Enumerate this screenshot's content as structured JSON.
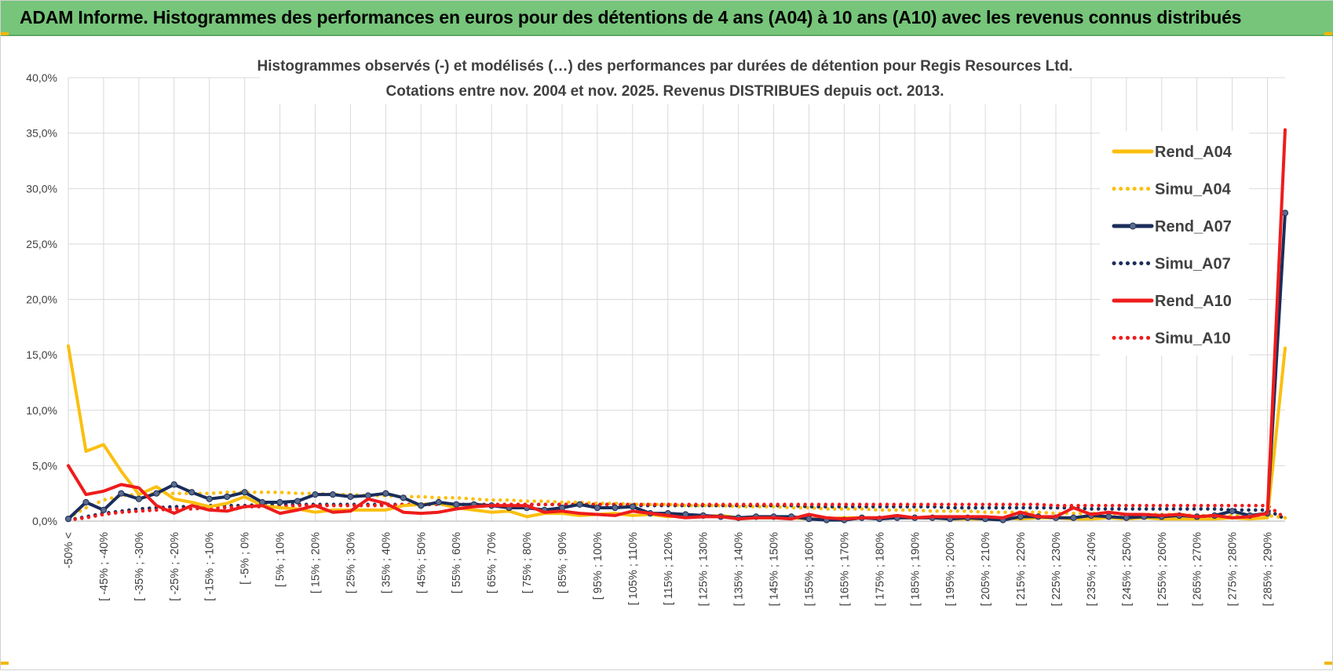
{
  "header": {
    "title": "ADAM Informe. Histogrammes des performances en euros pour des détentions de 4 ans (A04) à 10 ans (A10) avec les revenus connus distribués"
  },
  "colors": {
    "banner": "#76c57a",
    "rend_a04": "#fbbf0f",
    "rend_a07": "#1a2d5a",
    "rend_a10": "#ee1c1c",
    "grid": "#d9d9d9"
  },
  "chart_data": {
    "type": "line",
    "title_line1": "Histogrammes observés (-) et modélisés (…)  des performances par durées de détention pour Regis Resources Ltd.",
    "title_line2": "Cotations entre nov. 2004 et nov. 2025. Revenus DISTRIBUES depuis oct. 2013.",
    "xlabel": "",
    "ylabel": "",
    "ylim": [
      0,
      40
    ],
    "yticks": [
      "0,0%",
      "5,0%",
      "10,0%",
      "15,0%",
      "20,0%",
      "25,0%",
      "30,0%",
      "35,0%",
      "40,0%"
    ],
    "grid": true,
    "legend_position": "right",
    "x_labels": [
      {
        "i": 0,
        "label": "-50% <"
      },
      {
        "i": 2,
        "label": "[ -45% ; -40%"
      },
      {
        "i": 4,
        "label": "[ -35% ; -30%"
      },
      {
        "i": 6,
        "label": "[ -25% ; -20%"
      },
      {
        "i": 8,
        "label": "[ -15% ; -10%"
      },
      {
        "i": 10,
        "label": "[ -5% ; 0%"
      },
      {
        "i": 12,
        "label": "[ 5% ; 10%"
      },
      {
        "i": 14,
        "label": "[ 15% ; 20%"
      },
      {
        "i": 16,
        "label": "[ 25% ; 30%"
      },
      {
        "i": 18,
        "label": "[ 35% ; 40%"
      },
      {
        "i": 20,
        "label": "[ 45% ; 50%"
      },
      {
        "i": 22,
        "label": "[ 55% ; 60%"
      },
      {
        "i": 24,
        "label": "[ 65% ; 70%"
      },
      {
        "i": 26,
        "label": "[ 75% ; 80%"
      },
      {
        "i": 28,
        "label": "[ 85% ; 90%"
      },
      {
        "i": 30,
        "label": "[ 95% ; 100%"
      },
      {
        "i": 32,
        "label": "[ 105% ; 110%"
      },
      {
        "i": 34,
        "label": "[ 115% ; 120%"
      },
      {
        "i": 36,
        "label": "[ 125% ; 130%"
      },
      {
        "i": 38,
        "label": "[ 135% ; 140%"
      },
      {
        "i": 40,
        "label": "[ 145% ; 150%"
      },
      {
        "i": 42,
        "label": "[ 155% ; 160%"
      },
      {
        "i": 44,
        "label": "[ 165% ; 170%"
      },
      {
        "i": 46,
        "label": "[ 175% ; 180%"
      },
      {
        "i": 48,
        "label": "[ 185% ; 190%"
      },
      {
        "i": 50,
        "label": "[ 195% ; 200%"
      },
      {
        "i": 52,
        "label": "[ 205% ; 210%"
      },
      {
        "i": 54,
        "label": "[ 215% ; 220%"
      },
      {
        "i": 56,
        "label": "[ 225% ; 230%"
      },
      {
        "i": 58,
        "label": "[ 235% ; 240%"
      },
      {
        "i": 60,
        "label": "[ 245% ; 250%"
      },
      {
        "i": 62,
        "label": "[ 255% ; 260%"
      },
      {
        "i": 64,
        "label": "[ 265% ; 270%"
      },
      {
        "i": 66,
        "label": "[ 275% ; 280%"
      },
      {
        "i": 68,
        "label": "[ 285% ; 290%"
      }
    ],
    "num_points": 70,
    "series": [
      {
        "name": "Rend_A04",
        "style": "solid",
        "color": "#fbbf0f",
        "markers": false,
        "values": [
          15.8,
          6.3,
          6.9,
          4.5,
          2.4,
          3.1,
          2.0,
          1.7,
          1.3,
          1.6,
          2.2,
          1.4,
          1.2,
          1.1,
          0.8,
          1.0,
          1.0,
          1.0,
          1.0,
          1.4,
          1.5,
          1.6,
          1.2,
          1.0,
          0.8,
          0.9,
          0.4,
          0.7,
          0.7,
          0.5,
          0.6,
          0.7,
          0.5,
          0.6,
          0.4,
          0.5,
          0.4,
          0.5,
          0.3,
          0.3,
          0.3,
          0.3,
          0.2,
          0.2,
          0.3,
          0.3,
          0.3,
          0.3,
          0.3,
          0.3,
          0.2,
          0.2,
          0.2,
          0.3,
          0.2,
          0.3,
          0.3,
          0.2,
          0.2,
          0.3,
          0.2,
          0.3,
          0.2,
          0.2,
          0.2,
          0.2,
          0.3,
          0.2,
          0.3,
          15.6
        ]
      },
      {
        "name": "Simu_A04",
        "style": "dotted",
        "color": "#fbbf0f",
        "markers": false,
        "values": [
          0.3,
          1.2,
          1.9,
          2.3,
          2.4,
          2.5,
          2.5,
          2.5,
          2.5,
          2.6,
          2.6,
          2.6,
          2.6,
          2.5,
          2.5,
          2.4,
          2.4,
          2.3,
          2.3,
          2.2,
          2.2,
          2.1,
          2.1,
          2.0,
          1.9,
          1.9,
          1.8,
          1.8,
          1.7,
          1.7,
          1.6,
          1.6,
          1.5,
          1.5,
          1.5,
          1.4,
          1.4,
          1.4,
          1.3,
          1.3,
          1.3,
          1.2,
          1.2,
          1.1,
          1.1,
          1.1,
          1.0,
          1.0,
          1.0,
          0.9,
          0.9,
          0.9,
          0.8,
          0.8,
          0.8,
          0.8,
          0.7,
          0.7,
          0.7,
          0.7,
          0.6,
          0.6,
          0.6,
          0.6,
          0.5,
          0.5,
          0.5,
          0.5,
          0.5,
          0.3
        ]
      },
      {
        "name": "Rend_A07",
        "style": "solid",
        "color": "#1a2d5a",
        "markers": true,
        "marker_color": "#5a6b8c",
        "values": [
          0.2,
          1.7,
          1.0,
          2.5,
          2.0,
          2.5,
          3.3,
          2.6,
          2.0,
          2.2,
          2.6,
          1.7,
          1.7,
          1.8,
          2.4,
          2.4,
          2.2,
          2.3,
          2.5,
          2.1,
          1.4,
          1.7,
          1.5,
          1.5,
          1.4,
          1.2,
          1.2,
          1.0,
          1.2,
          1.5,
          1.2,
          1.2,
          1.3,
          0.7,
          0.7,
          0.6,
          0.5,
          0.4,
          0.3,
          0.4,
          0.4,
          0.4,
          0.2,
          0.1,
          0.1,
          0.3,
          0.2,
          0.3,
          0.3,
          0.3,
          0.2,
          0.3,
          0.2,
          0.1,
          0.4,
          0.4,
          0.3,
          0.3,
          0.5,
          0.4,
          0.3,
          0.4,
          0.4,
          0.5,
          0.4,
          0.5,
          0.9,
          0.5,
          0.7,
          27.8
        ]
      },
      {
        "name": "Simu_A07",
        "style": "dotted",
        "color": "#1a2d5a",
        "markers": false,
        "values": [
          0.1,
          0.4,
          0.7,
          0.9,
          1.1,
          1.2,
          1.3,
          1.3,
          1.4,
          1.4,
          1.4,
          1.5,
          1.5,
          1.5,
          1.5,
          1.5,
          1.5,
          1.5,
          1.5,
          1.5,
          1.5,
          1.5,
          1.5,
          1.5,
          1.5,
          1.5,
          1.5,
          1.5,
          1.5,
          1.5,
          1.5,
          1.5,
          1.4,
          1.4,
          1.4,
          1.4,
          1.4,
          1.4,
          1.4,
          1.4,
          1.4,
          1.4,
          1.3,
          1.3,
          1.3,
          1.3,
          1.3,
          1.3,
          1.3,
          1.3,
          1.2,
          1.2,
          1.2,
          1.2,
          1.2,
          1.2,
          1.2,
          1.2,
          1.1,
          1.1,
          1.1,
          1.1,
          1.1,
          1.1,
          1.1,
          1.1,
          1.0,
          1.0,
          1.0,
          0.2
        ]
      },
      {
        "name": "Rend_A10",
        "style": "solid",
        "color": "#ee1c1c",
        "markers": false,
        "values": [
          5.0,
          2.4,
          2.7,
          3.3,
          3.0,
          1.4,
          0.7,
          1.4,
          1.0,
          0.9,
          1.3,
          1.4,
          0.7,
          1.0,
          1.4,
          0.8,
          0.9,
          2.0,
          1.6,
          0.8,
          0.7,
          0.8,
          1.1,
          1.3,
          1.4,
          1.4,
          1.4,
          0.8,
          0.9,
          0.7,
          0.6,
          0.5,
          0.9,
          0.7,
          0.5,
          0.3,
          0.4,
          0.4,
          0.2,
          0.3,
          0.3,
          0.2,
          0.6,
          0.3,
          0.2,
          0.3,
          0.3,
          0.5,
          0.3,
          0.4,
          0.4,
          0.4,
          0.4,
          0.3,
          0.8,
          0.4,
          0.4,
          1.2,
          0.6,
          0.8,
          0.6,
          0.6,
          0.5,
          0.6,
          0.4,
          0.5,
          0.3,
          0.4,
          0.7,
          35.3
        ]
      },
      {
        "name": "Simu_A10",
        "style": "dotted",
        "color": "#ee1c1c",
        "markers": false,
        "values": [
          0.1,
          0.3,
          0.6,
          0.8,
          0.9,
          1.0,
          1.1,
          1.1,
          1.2,
          1.2,
          1.3,
          1.3,
          1.3,
          1.4,
          1.4,
          1.4,
          1.4,
          1.4,
          1.4,
          1.5,
          1.5,
          1.5,
          1.5,
          1.5,
          1.5,
          1.5,
          1.5,
          1.5,
          1.5,
          1.5,
          1.5,
          1.5,
          1.5,
          1.5,
          1.5,
          1.5,
          1.5,
          1.5,
          1.5,
          1.5,
          1.5,
          1.5,
          1.5,
          1.5,
          1.5,
          1.5,
          1.5,
          1.5,
          1.5,
          1.5,
          1.5,
          1.5,
          1.5,
          1.5,
          1.5,
          1.5,
          1.4,
          1.4,
          1.4,
          1.4,
          1.4,
          1.4,
          1.4,
          1.4,
          1.4,
          1.4,
          1.4,
          1.4,
          1.4,
          0.3
        ]
      }
    ]
  }
}
